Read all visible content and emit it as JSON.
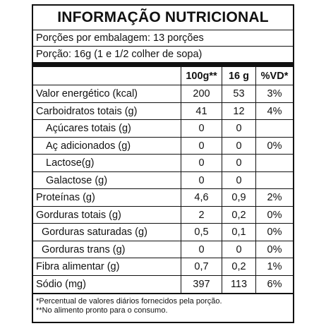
{
  "title": "INFORMAÇÃO NUTRICIONAL",
  "servings_per_package": "Porções por embalagem: 13 porções",
  "serving_size": "Porção: 16g (1 e 1/2 colher de sopa)",
  "table": {
    "headers": [
      "",
      "100g**",
      "16 g",
      "%VD*"
    ],
    "rows": [
      {
        "label": "Valor energético (kcal)",
        "per100": "200",
        "perServing": "53",
        "vd": "3%"
      },
      {
        "label": "Carboidratos totais (g)",
        "per100": "41",
        "perServing": "12",
        "vd": "4%"
      },
      {
        "label": "Açúcares totais (g)",
        "per100": "0",
        "perServing": "0",
        "vd": ""
      },
      {
        "label": "Aç adicionados (g)",
        "per100": "0",
        "perServing": "0",
        "vd": "0%"
      },
      {
        "label": "Lactose(g)",
        "per100": "0",
        "perServing": "0",
        "vd": ""
      },
      {
        "label": "Galactose (g)",
        "per100": "0",
        "perServing": "0",
        "vd": ""
      },
      {
        "label": "Proteínas (g)",
        "per100": "4,6",
        "perServing": "0,9",
        "vd": "2%"
      },
      {
        "label": "Gorduras totais (g)",
        "per100": "2",
        "perServing": "0,2",
        "vd": "0%"
      },
      {
        "label": "Gorduras saturadas (g)",
        "per100": "0,5",
        "perServing": "0,1",
        "vd": "0%"
      },
      {
        "label": "Gorduras trans (g)",
        "per100": "0",
        "perServing": "0",
        "vd": "0%"
      },
      {
        "label": "Fibra alimentar (g)",
        "per100": "0,7",
        "perServing": "0,2",
        "vd": "1%"
      },
      {
        "label": "Sódio (mg)",
        "per100": "397",
        "perServing": "113",
        "vd": "6%"
      }
    ]
  },
  "footnotes": [
    "*Percentual de valores diários fornecidos pela porção.",
    "**No alimento pronto para o consumo."
  ]
}
